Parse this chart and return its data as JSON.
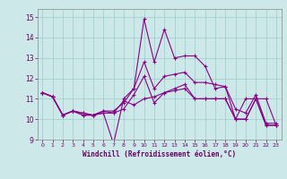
{
  "xlabel": "Windchill (Refroidissement éolien,°C)",
  "bg_color": "#cce8e8",
  "line_color": "#880088",
  "grid_color": "#99cccc",
  "ylim": [
    9,
    15.4
  ],
  "xlim": [
    -0.5,
    23.5
  ],
  "yticks": [
    9,
    10,
    11,
    12,
    13,
    14,
    15
  ],
  "xticks": [
    0,
    1,
    2,
    3,
    4,
    5,
    6,
    7,
    8,
    9,
    10,
    11,
    12,
    13,
    14,
    15,
    16,
    17,
    18,
    19,
    20,
    21,
    22,
    23
  ],
  "line1_x": [
    0,
    1,
    2,
    3,
    4,
    5,
    6,
    7,
    8,
    9,
    10,
    11,
    12,
    13,
    14,
    15,
    16,
    17,
    18,
    19,
    20,
    21,
    22,
    23
  ],
  "line1_y": [
    11.3,
    11.1,
    10.2,
    10.4,
    10.2,
    10.2,
    10.3,
    10.3,
    10.9,
    10.7,
    11.0,
    11.1,
    11.3,
    11.4,
    11.5,
    11.0,
    11.0,
    11.0,
    11.0,
    10.0,
    10.0,
    11.0,
    9.7,
    9.7
  ],
  "line2_x": [
    0,
    1,
    2,
    3,
    4,
    5,
    6,
    7,
    8,
    9,
    10,
    11,
    12,
    13,
    14,
    15,
    16,
    17,
    18,
    19,
    20,
    21,
    22,
    23
  ],
  "line2_y": [
    11.3,
    11.1,
    10.2,
    10.4,
    10.2,
    10.2,
    10.3,
    8.8,
    11.0,
    11.5,
    14.9,
    12.8,
    14.4,
    13.0,
    13.1,
    13.1,
    12.6,
    11.5,
    11.6,
    10.0,
    11.0,
    11.0,
    11.0,
    9.7
  ],
  "line3_x": [
    0,
    1,
    2,
    3,
    4,
    5,
    6,
    7,
    8,
    9,
    10,
    11,
    12,
    13,
    14,
    15,
    16,
    17,
    18,
    19,
    20,
    21,
    22,
    23
  ],
  "line3_y": [
    11.3,
    11.1,
    10.2,
    10.4,
    10.3,
    10.2,
    10.4,
    10.3,
    10.5,
    11.2,
    12.1,
    10.8,
    11.3,
    11.5,
    11.7,
    11.0,
    11.0,
    11.0,
    11.0,
    10.0,
    10.0,
    11.0,
    9.7,
    9.7
  ],
  "line4_x": [
    0,
    1,
    2,
    3,
    4,
    5,
    6,
    7,
    8,
    9,
    10,
    11,
    12,
    13,
    14,
    15,
    16,
    17,
    18,
    19,
    20,
    21,
    22,
    23
  ],
  "line4_y": [
    11.3,
    11.1,
    10.2,
    10.4,
    10.3,
    10.2,
    10.4,
    10.4,
    10.8,
    11.5,
    12.8,
    11.5,
    12.1,
    12.2,
    12.3,
    11.8,
    11.8,
    11.7,
    11.6,
    10.5,
    10.3,
    11.2,
    9.8,
    9.8
  ]
}
